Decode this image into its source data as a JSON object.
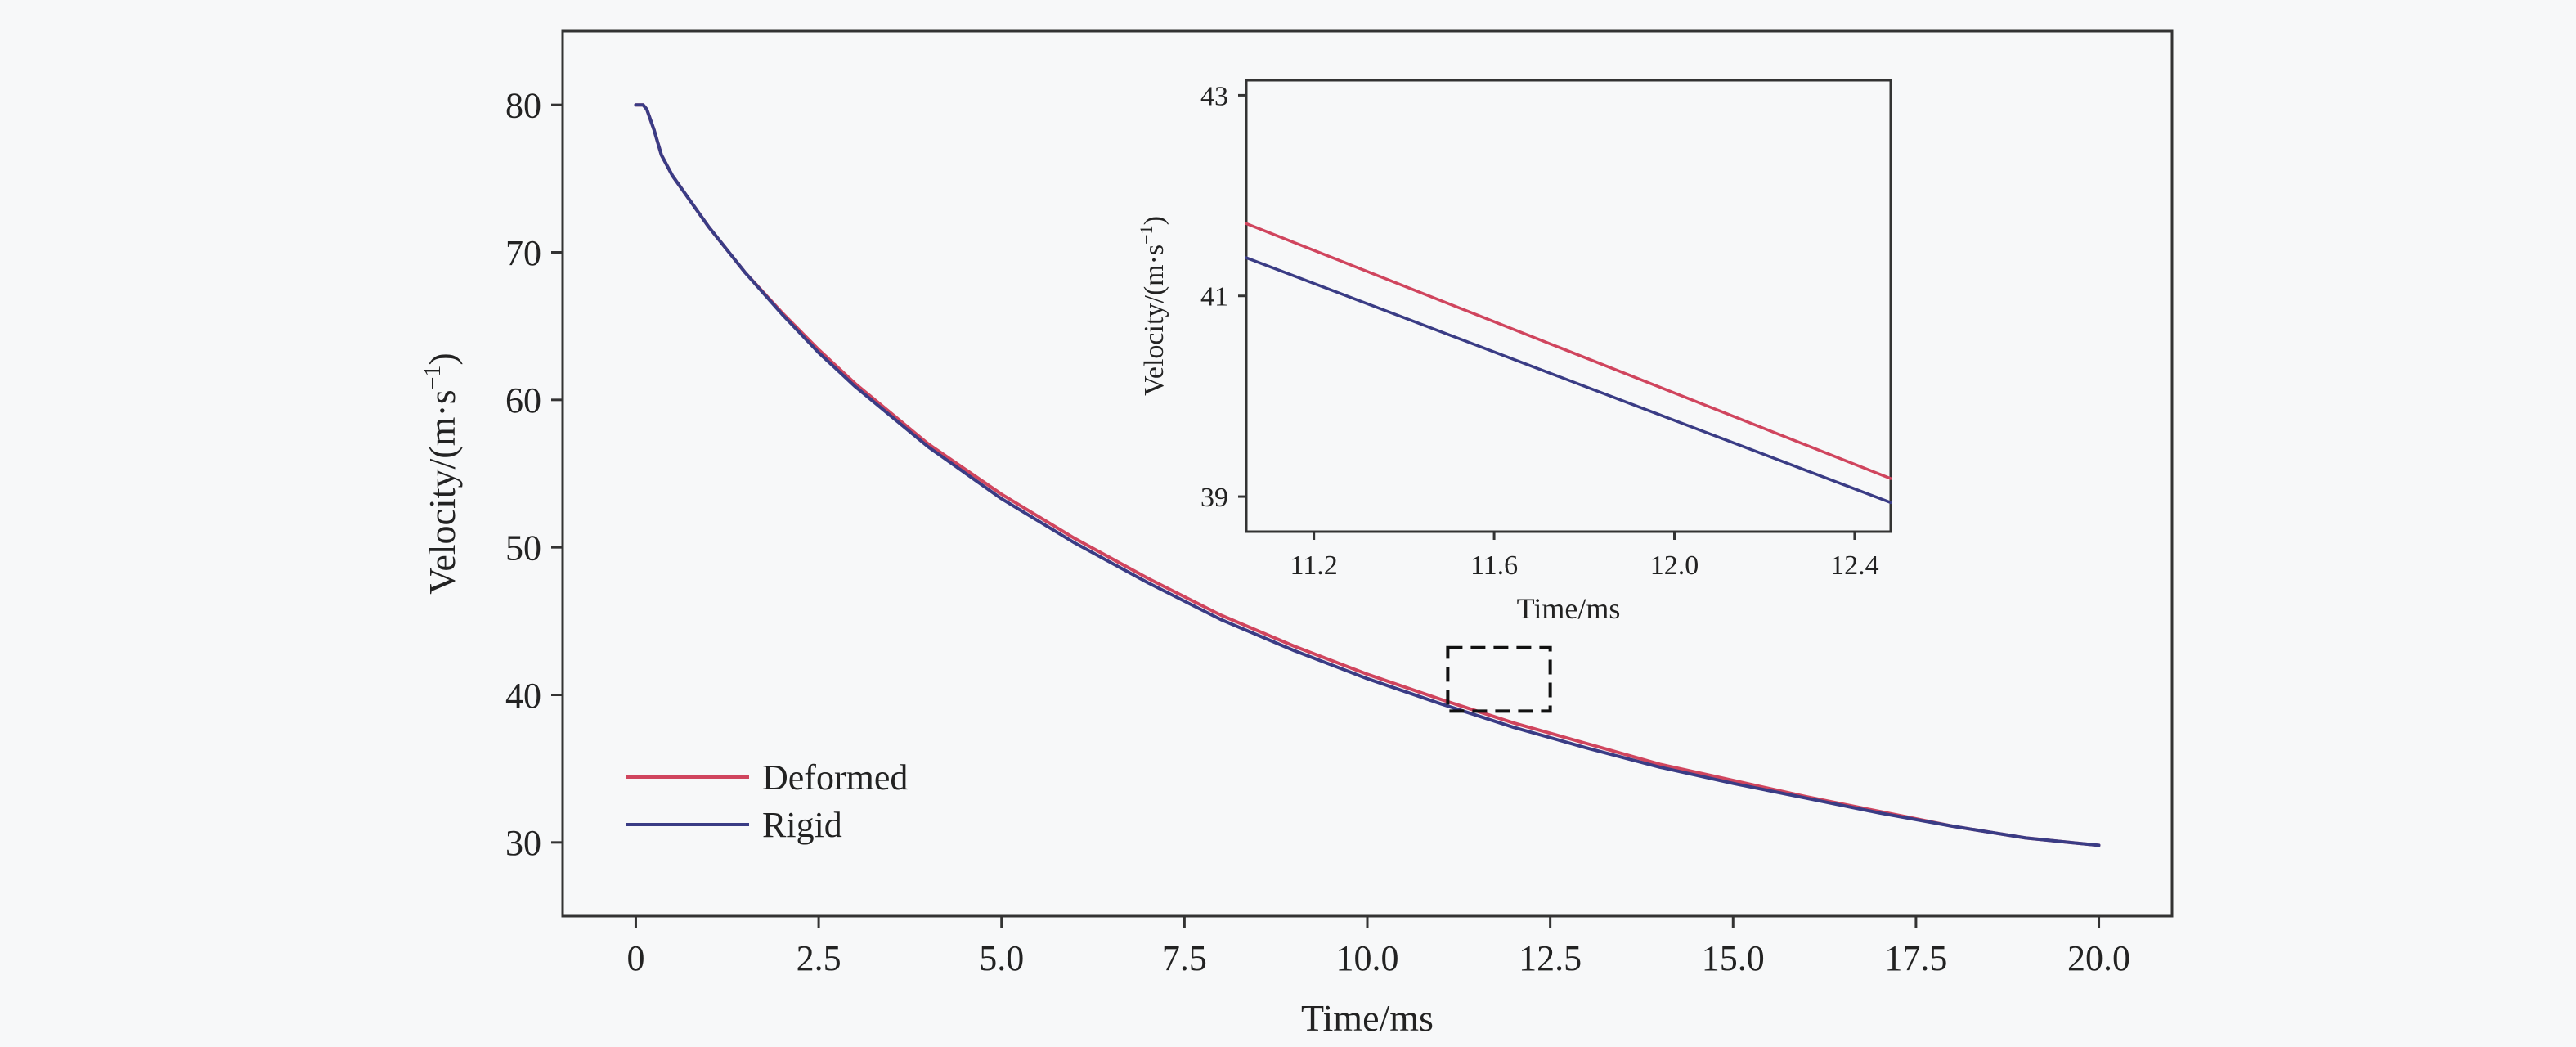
{
  "chart_data": [
    {
      "type": "line",
      "xlabel": "Time/ms",
      "ylabel_main": "Velocity/(m·s",
      "ylabel_exp": "−1",
      "ylabel_close": ")",
      "xlim": [
        -1.0,
        21.0
      ],
      "ylim": [
        25.0,
        85.0
      ],
      "xticks": [
        0,
        2.5,
        5.0,
        7.5,
        10.0,
        12.5,
        15.0,
        17.5,
        20.0
      ],
      "xtick_labels": [
        "0",
        "2.5",
        "5.0",
        "7.5",
        "10.0",
        "12.5",
        "15.0",
        "17.5",
        "20.0"
      ],
      "yticks": [
        30,
        40,
        50,
        60,
        70,
        80
      ],
      "ytick_labels": [
        "30",
        "40",
        "50",
        "60",
        "70",
        "80"
      ],
      "grid": false,
      "legend_position": "bottom-left",
      "highlight_box": {
        "x": [
          11.1,
          12.5
        ],
        "y": [
          38.9,
          43.2
        ]
      },
      "x": [
        0.0,
        0.1,
        0.15,
        0.25,
        0.35,
        0.5,
        1.0,
        1.5,
        2.0,
        2.5,
        3.0,
        4.0,
        5.0,
        6.0,
        7.0,
        8.0,
        9.0,
        10.0,
        11.0,
        12.0,
        13.0,
        14.0,
        15.0,
        16.0,
        17.0,
        18.0,
        19.0,
        20.0
      ],
      "series": [
        {
          "name": "Deformed",
          "color": "#d0455e",
          "values": [
            80.0,
            80.0,
            79.7,
            78.3,
            76.6,
            75.2,
            71.7,
            68.6,
            65.9,
            63.4,
            61.1,
            57.0,
            53.6,
            50.6,
            47.9,
            45.4,
            43.3,
            41.4,
            39.7,
            38.1,
            36.7,
            35.3,
            34.2,
            33.1,
            32.1,
            31.1,
            30.3,
            29.8
          ]
        },
        {
          "name": "Rigid",
          "color": "#3a3c85",
          "values": [
            80.0,
            80.0,
            79.7,
            78.3,
            76.6,
            75.2,
            71.7,
            68.6,
            65.8,
            63.2,
            60.9,
            56.8,
            53.3,
            50.3,
            47.6,
            45.1,
            43.0,
            41.1,
            39.4,
            37.8,
            36.4,
            35.1,
            34.0,
            33.0,
            32.0,
            31.1,
            30.3,
            29.8
          ]
        }
      ]
    },
    {
      "type": "line",
      "xlabel": "Time/ms",
      "ylabel_main": "Velocity/(m·s",
      "ylabel_exp": "−1",
      "ylabel_close": ")",
      "xlim": [
        11.05,
        12.48
      ],
      "ylim": [
        38.65,
        43.15
      ],
      "xticks": [
        11.2,
        11.6,
        12.0,
        12.4
      ],
      "xtick_labels": [
        "11.2",
        "11.6",
        "12.0",
        "12.4"
      ],
      "yticks": [
        39,
        41,
        43
      ],
      "ytick_labels": [
        "39",
        "41",
        "43"
      ],
      "grid": false,
      "x": [
        11.05,
        12.48
      ],
      "series": [
        {
          "name": "Deformed",
          "color": "#d0455e",
          "values": [
            41.72,
            39.18
          ]
        },
        {
          "name": "Rigid",
          "color": "#3a3c85",
          "values": [
            41.38,
            38.94
          ]
        }
      ]
    }
  ]
}
